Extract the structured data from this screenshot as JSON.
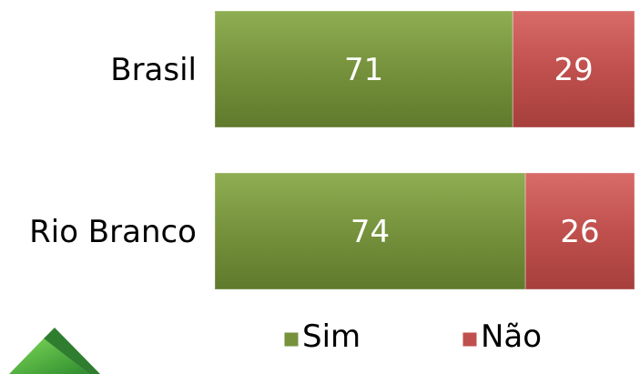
{
  "chart_data": {
    "type": "bar",
    "orientation": "horizontal",
    "stacked": true,
    "percent": true,
    "categories": [
      "Brasil",
      "Rio Branco"
    ],
    "series": [
      {
        "name": "Sim",
        "values": [
          71,
          74
        ],
        "color": "#76923c"
      },
      {
        "name": "Não",
        "values": [
          29,
          26
        ],
        "color": "#c0504d"
      }
    ],
    "data_labels": [
      [
        "71",
        "29"
      ],
      [
        "74",
        "26"
      ]
    ],
    "xlim": [
      0,
      100
    ],
    "legend_position": "bottom-right",
    "grid": false
  },
  "logo": {
    "icon": "green-chevron-logo-icon"
  }
}
